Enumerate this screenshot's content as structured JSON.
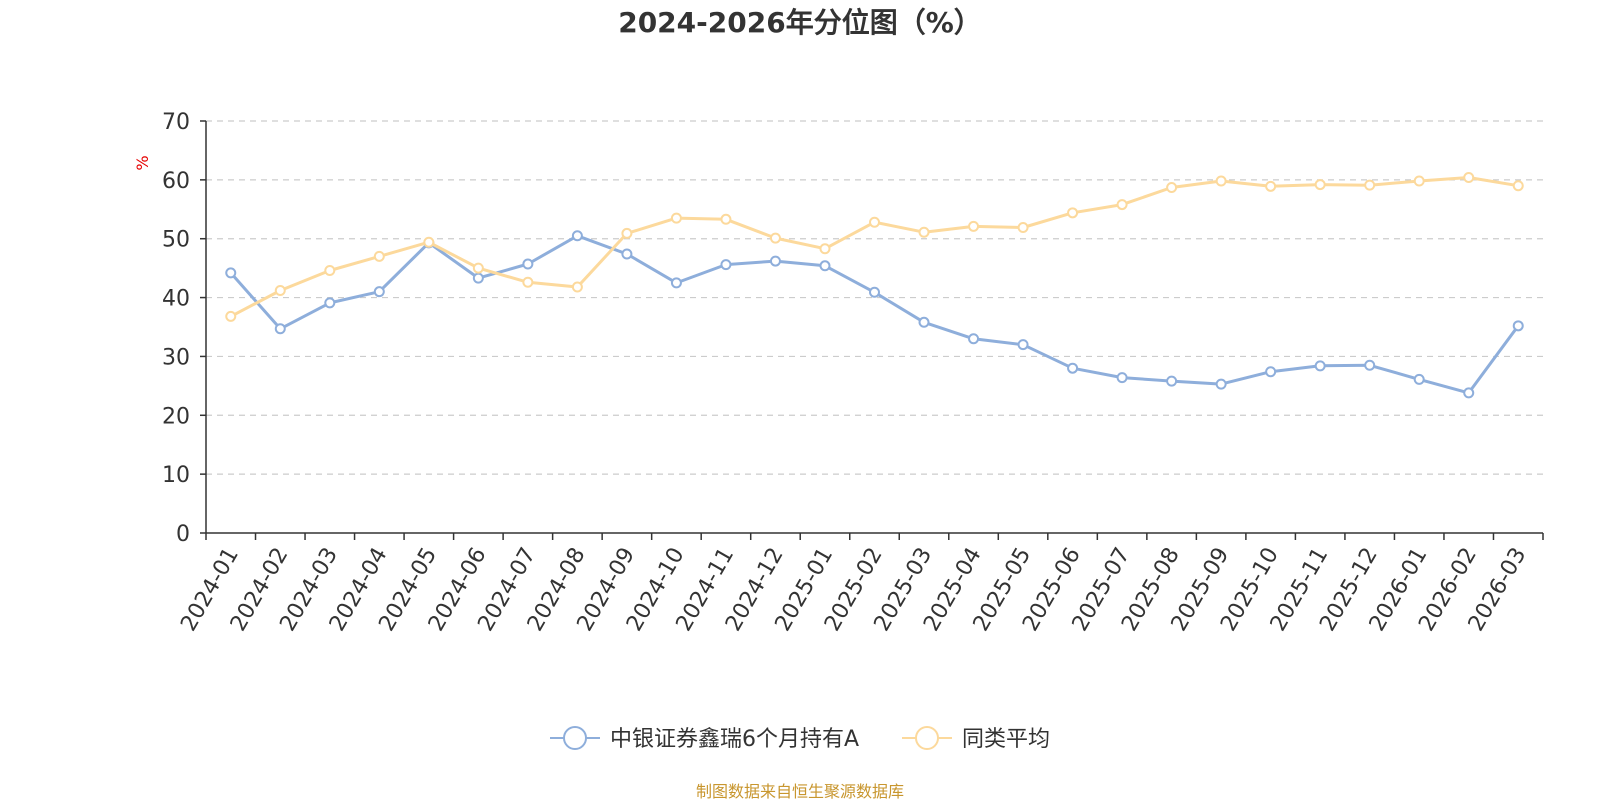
{
  "chart_data": {
    "type": "line",
    "title": "2024-2026年分位图（%）",
    "ylabel": "%",
    "xlabel": "",
    "ylim": [
      0,
      70
    ],
    "yticks": [
      0,
      10,
      20,
      30,
      40,
      50,
      60,
      70
    ],
    "grid": true,
    "legend_position": "bottom-center",
    "categories": [
      "2024-01",
      "2024-02",
      "2024-03",
      "2024-04",
      "2024-05",
      "2024-06",
      "2024-07",
      "2024-08",
      "2024-09",
      "2024-10",
      "2024-11",
      "2024-12",
      "2025-01",
      "2025-02",
      "2025-03",
      "2025-04",
      "2025-05",
      "2025-06",
      "2025-07",
      "2025-08",
      "2025-09",
      "2025-10",
      "2025-11",
      "2025-12",
      "2026-01",
      "2026-02",
      "2026-03"
    ],
    "series": [
      {
        "name": "中银证券鑫瑞6个月持有A",
        "color": "#8eaedb",
        "values": [
          44.2,
          34.7,
          39.1,
          41.0,
          49.3,
          43.3,
          45.7,
          50.5,
          47.4,
          42.5,
          45.6,
          46.2,
          45.4,
          40.9,
          35.8,
          33.0,
          32.0,
          28.0,
          26.4,
          25.8,
          25.3,
          27.4,
          28.4,
          28.5,
          26.1,
          23.8,
          35.2
        ]
      },
      {
        "name": "同类平均",
        "color": "#fcd99c",
        "values": [
          36.8,
          41.2,
          44.6,
          47.0,
          49.4,
          45.0,
          42.6,
          41.8,
          50.9,
          53.5,
          53.3,
          50.1,
          48.3,
          52.8,
          51.1,
          52.1,
          51.9,
          54.4,
          55.8,
          58.7,
          59.8,
          58.9,
          59.2,
          59.1,
          59.8,
          60.4,
          59.0
        ]
      }
    ]
  },
  "source_text": "制图数据来自恒生聚源数据库"
}
